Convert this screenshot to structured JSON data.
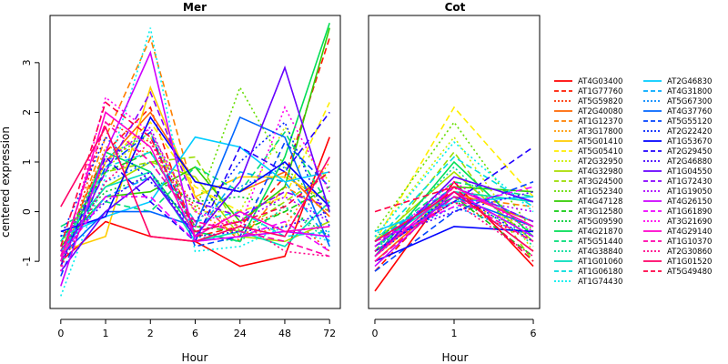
{
  "chart_data": {
    "type": "line",
    "ylabel": "centered expression",
    "legend_placement": "right",
    "ylim": [
      -1.95,
      3.95
    ],
    "panels": [
      {
        "title": "Mer",
        "xlabel": "Hour",
        "x": [
          "0",
          "1",
          "2",
          "6",
          "24",
          "48",
          "72"
        ],
        "ylim": [
          -1.95,
          3.95
        ],
        "yticks": [
          -1,
          0,
          1,
          2,
          3
        ],
        "series": [
          {
            "name": "AT4G03400",
            "values": [
              -1.0,
              -0.2,
              -0.5,
              -0.6,
              -1.1,
              -0.9,
              1.5
            ]
          },
          {
            "name": "AT1G77760",
            "values": [
              -0.8,
              1.2,
              2.1,
              -0.5,
              -0.3,
              0.7,
              3.5
            ]
          },
          {
            "name": "AT5G59820",
            "values": [
              -1.2,
              1.8,
              1.4,
              0.1,
              -0.3,
              0.0,
              -0.8
            ]
          },
          {
            "name": "AT2G40080",
            "values": [
              -0.9,
              1.0,
              2.0,
              0.6,
              0.4,
              0.8,
              -0.1
            ]
          },
          {
            "name": "AT1G12370",
            "values": [
              -1.1,
              1.5,
              3.5,
              0.3,
              -0.6,
              0.5,
              0.0
            ]
          },
          {
            "name": "AT3G17800",
            "values": [
              -1.0,
              1.3,
              1.2,
              0.0,
              -0.5,
              -0.3,
              1.0
            ]
          },
          {
            "name": "AT5G01410",
            "values": [
              -0.8,
              -0.5,
              2.5,
              0.3,
              0.7,
              0.7,
              0.2
            ]
          },
          {
            "name": "AT5G05410",
            "values": [
              -0.9,
              1.0,
              1.8,
              0.5,
              0.0,
              0.3,
              2.2
            ]
          },
          {
            "name": "AT2G32950",
            "values": [
              -0.7,
              0.9,
              1.5,
              0.0,
              0.0,
              1.7,
              0.6
            ]
          },
          {
            "name": "AT4G32980",
            "values": [
              -0.6,
              0.5,
              1.0,
              0.7,
              -0.5,
              -0.6,
              -0.2
            ]
          },
          {
            "name": "AT3G24500",
            "values": [
              -0.9,
              0.8,
              1.0,
              1.1,
              -0.4,
              0.2,
              0.8
            ]
          },
          {
            "name": "AT1G52340",
            "values": [
              -1.0,
              1.0,
              1.6,
              0.0,
              2.5,
              0.9,
              0.0
            ]
          },
          {
            "name": "AT4G47128",
            "values": [
              -0.7,
              0.3,
              0.4,
              0.9,
              -0.2,
              0.5,
              3.7
            ]
          },
          {
            "name": "AT3G12580",
            "values": [
              -0.6,
              0.8,
              1.2,
              -0.3,
              -0.4,
              0.0,
              0.5
            ]
          },
          {
            "name": "AT5G09590",
            "values": [
              -0.5,
              0.4,
              0.7,
              0.2,
              0.3,
              0.1,
              -0.5
            ]
          },
          {
            "name": "AT4G21870",
            "values": [
              -1.1,
              1.2,
              0.8,
              -0.4,
              -0.6,
              1.1,
              3.8
            ]
          },
          {
            "name": "AT5G51440",
            "values": [
              -0.3,
              0.2,
              0.0,
              0.9,
              0.4,
              1.6,
              0.1
            ]
          },
          {
            "name": "AT4G38840",
            "values": [
              -0.8,
              1.1,
              1.6,
              -0.5,
              -0.6,
              0.1,
              -0.6
            ]
          },
          {
            "name": "AT1G01060",
            "values": [
              -0.6,
              0.5,
              0.8,
              -0.6,
              -0.4,
              -0.7,
              0.2
            ]
          },
          {
            "name": "AT1G06180",
            "values": [
              -0.9,
              0.9,
              1.2,
              -0.2,
              0.0,
              -0.5,
              -0.4
            ]
          },
          {
            "name": "AT1G74430",
            "values": [
              -1.7,
              0.7,
              3.7,
              -0.8,
              -0.7,
              -0.3,
              -0.6
            ]
          },
          {
            "name": "AT2G46830",
            "values": [
              -0.5,
              -0.1,
              0.2,
              1.5,
              1.3,
              0.6,
              0.8
            ]
          },
          {
            "name": "AT4G31800",
            "values": [
              -0.8,
              0.3,
              0.7,
              -0.5,
              0.8,
              0.6,
              -0.6
            ]
          },
          {
            "name": "AT5G67300",
            "values": [
              -1.0,
              0.6,
              1.0,
              -0.2,
              0.5,
              0.9,
              -0.5
            ]
          },
          {
            "name": "AT4G37760",
            "values": [
              -0.9,
              0.0,
              0.0,
              -0.3,
              1.9,
              1.5,
              -0.7
            ]
          },
          {
            "name": "AT5G55120",
            "values": [
              -1.3,
              0.9,
              1.6,
              -0.7,
              -0.5,
              1.4,
              0.5
            ]
          },
          {
            "name": "AT2G22420",
            "values": [
              -0.5,
              1.5,
              0.6,
              -0.2,
              1.0,
              1.8,
              -0.3
            ]
          },
          {
            "name": "AT1G53670",
            "values": [
              -0.4,
              -0.1,
              1.9,
              0.6,
              0.4,
              1.0,
              0.1
            ]
          },
          {
            "name": "AT2G29450",
            "values": [
              -1.1,
              1.1,
              0.2,
              -0.6,
              1.3,
              0.8,
              2.0
            ]
          },
          {
            "name": "AT2G46880",
            "values": [
              -0.7,
              0.2,
              0.8,
              -0.5,
              -0.4,
              -0.3,
              0.0
            ]
          },
          {
            "name": "AT1G04550",
            "values": [
              -1.2,
              0.0,
              0.7,
              -0.5,
              0.6,
              2.9,
              0.0
            ]
          },
          {
            "name": "AT1G72430",
            "values": [
              -1.0,
              0.8,
              2.4,
              0.2,
              -0.1,
              0.4,
              0.1
            ]
          },
          {
            "name": "AT1G19050",
            "values": [
              -0.8,
              1.0,
              1.7,
              -0.4,
              -0.2,
              0.3,
              -0.2
            ]
          },
          {
            "name": "AT4G26150",
            "values": [
              -1.5,
              1.2,
              3.2,
              -0.6,
              -0.5,
              -0.4,
              -0.5
            ]
          },
          {
            "name": "AT1G61890",
            "values": [
              -0.9,
              0.3,
              0.3,
              -0.6,
              -0.5,
              -0.2,
              -0.8
            ]
          },
          {
            "name": "AT3G21690",
            "values": [
              -1.2,
              2.3,
              1.6,
              0.0,
              -0.3,
              2.1,
              0.4
            ]
          },
          {
            "name": "AT4G29140",
            "values": [
              -1.0,
              2.0,
              1.3,
              -0.5,
              0.0,
              -0.4,
              -0.3
            ]
          },
          {
            "name": "AT1G10370",
            "values": [
              -0.9,
              1.8,
              1.0,
              -0.2,
              -0.4,
              -0.6,
              -0.9
            ]
          },
          {
            "name": "AT2G30860",
            "values": [
              -1.1,
              0.6,
              1.4,
              -0.3,
              -0.2,
              -0.8,
              -0.9
            ]
          },
          {
            "name": "AT1G01520",
            "values": [
              0.1,
              1.7,
              -0.5,
              -0.6,
              -0.3,
              -0.5,
              1.1
            ]
          },
          {
            "name": "AT5G49480",
            "values": [
              -0.7,
              2.2,
              1.5,
              -0.4,
              -0.2,
              0.1,
              0.8
            ]
          }
        ]
      },
      {
        "title": "Cot",
        "xlabel": "Hour",
        "x": [
          "0",
          "1",
          "6"
        ],
        "ylim": [
          -1.95,
          3.95
        ],
        "yticks": [],
        "series": [
          {
            "name": "AT4G03400",
            "values": [
              -1.6,
              0.6,
              -1.1
            ]
          },
          {
            "name": "AT1G77760",
            "values": [
              -1.2,
              0.5,
              -0.3
            ]
          },
          {
            "name": "AT5G59820",
            "values": [
              -0.8,
              0.2,
              -0.6
            ]
          },
          {
            "name": "AT2G40080",
            "values": [
              -1.0,
              0.4,
              -0.2
            ]
          },
          {
            "name": "AT1G12370",
            "values": [
              -0.6,
              0.3,
              0.1
            ]
          },
          {
            "name": "AT3G17800",
            "values": [
              -0.7,
              0.2,
              -0.3
            ]
          },
          {
            "name": "AT5G01410",
            "values": [
              -0.9,
              0.4,
              0.2
            ]
          },
          {
            "name": "AT5G05410",
            "values": [
              -0.6,
              2.1,
              0.3
            ]
          },
          {
            "name": "AT2G32950",
            "values": [
              -0.5,
              1.5,
              -0.8
            ]
          },
          {
            "name": "AT4G32980",
            "values": [
              -0.6,
              0.8,
              -0.6
            ]
          },
          {
            "name": "AT3G24500",
            "values": [
              -0.8,
              1.2,
              -1.0
            ]
          },
          {
            "name": "AT1G52340",
            "values": [
              -0.4,
              1.8,
              -0.4
            ]
          },
          {
            "name": "AT4G47128",
            "values": [
              -0.7,
              0.5,
              0.4
            ]
          },
          {
            "name": "AT3G12580",
            "values": [
              -0.6,
              0.3,
              -0.9
            ]
          },
          {
            "name": "AT5G09590",
            "values": [
              -0.5,
              0.2,
              -0.4
            ]
          },
          {
            "name": "AT4G21870",
            "values": [
              -0.9,
              1.0,
              -0.5
            ]
          },
          {
            "name": "AT5G51440",
            "values": [
              -0.6,
              0.6,
              0.3
            ]
          },
          {
            "name": "AT4G38840",
            "values": [
              -0.8,
              0.9,
              -0.7
            ]
          },
          {
            "name": "AT1G01060",
            "values": [
              -0.7,
              0.4,
              0.2
            ]
          },
          {
            "name": "AT1G06180",
            "values": [
              -0.6,
              1.1,
              0.1
            ]
          },
          {
            "name": "AT1G74430",
            "values": [
              -0.5,
              1.4,
              0.0
            ]
          },
          {
            "name": "AT2G46830",
            "values": [
              -0.4,
              0.2,
              0.3
            ]
          },
          {
            "name": "AT4G31800",
            "values": [
              -0.6,
              0.5,
              -0.2
            ]
          },
          {
            "name": "AT5G67300",
            "values": [
              -0.7,
              0.1,
              -0.5
            ]
          },
          {
            "name": "AT4G37760",
            "values": [
              -0.8,
              0.3,
              -0.3
            ]
          },
          {
            "name": "AT5G55120",
            "values": [
              -1.2,
              0.0,
              0.6
            ]
          },
          {
            "name": "AT2G22420",
            "values": [
              -0.9,
              0.4,
              -0.6
            ]
          },
          {
            "name": "AT1G53670",
            "values": [
              -1.0,
              -0.3,
              -0.4
            ]
          },
          {
            "name": "AT2G29450",
            "values": [
              -0.8,
              0.2,
              1.3
            ]
          },
          {
            "name": "AT2G46880",
            "values": [
              -0.6,
              0.0,
              0.4
            ]
          },
          {
            "name": "AT1G04550",
            "values": [
              -0.9,
              0.7,
              0.2
            ]
          },
          {
            "name": "AT1G72430",
            "values": [
              -0.7,
              0.5,
              -0.2
            ]
          },
          {
            "name": "AT1G19050",
            "values": [
              -0.8,
              0.3,
              0.0
            ]
          },
          {
            "name": "AT4G26150",
            "values": [
              -1.1,
              0.4,
              -0.5
            ]
          },
          {
            "name": "AT1G61890",
            "values": [
              -0.6,
              0.1,
              0.5
            ]
          },
          {
            "name": "AT3G21690",
            "values": [
              -0.7,
              0.6,
              -0.4
            ]
          },
          {
            "name": "AT4G29140",
            "values": [
              -0.9,
              0.5,
              -0.3
            ]
          },
          {
            "name": "AT1G10370",
            "values": [
              -1.0,
              0.3,
              -0.6
            ]
          },
          {
            "name": "AT2G30860",
            "values": [
              -0.8,
              0.2,
              -0.9
            ]
          },
          {
            "name": "AT1G01520",
            "values": [
              -0.6,
              0.4,
              -0.8
            ]
          },
          {
            "name": "AT5G49480",
            "values": [
              0.0,
              0.5,
              -1.0
            ]
          }
        ]
      }
    ],
    "series_styles": [
      {
        "color": "#ff0000",
        "dash": "solid"
      },
      {
        "color": "#ff1a00",
        "dash": "dashed"
      },
      {
        "color": "#ff3300",
        "dash": "dotted"
      },
      {
        "color": "#ff6600",
        "dash": "solid"
      },
      {
        "color": "#ff8000",
        "dash": "dashed"
      },
      {
        "color": "#ff9900",
        "dash": "dotted"
      },
      {
        "color": "#ffcc00",
        "dash": "solid"
      },
      {
        "color": "#ffee00",
        "dash": "dashed"
      },
      {
        "color": "#ccee00",
        "dash": "dotted"
      },
      {
        "color": "#aadd00",
        "dash": "solid"
      },
      {
        "color": "#99dd00",
        "dash": "dashed"
      },
      {
        "color": "#66dd00",
        "dash": "dotted"
      },
      {
        "color": "#33cc00",
        "dash": "solid"
      },
      {
        "color": "#11cc11",
        "dash": "dashed"
      },
      {
        "color": "#00cc33",
        "dash": "dotted"
      },
      {
        "color": "#00dd55",
        "dash": "solid"
      },
      {
        "color": "#00dd77",
        "dash": "dashed"
      },
      {
        "color": "#00dd99",
        "dash": "dotted"
      },
      {
        "color": "#00ddbb",
        "dash": "solid"
      },
      {
        "color": "#00dddd",
        "dash": "dashed"
      },
      {
        "color": "#00eeee",
        "dash": "dotted"
      },
      {
        "color": "#00ccff",
        "dash": "solid"
      },
      {
        "color": "#00aaff",
        "dash": "dashed"
      },
      {
        "color": "#0088ff",
        "dash": "dotted"
      },
      {
        "color": "#0066ff",
        "dash": "solid"
      },
      {
        "color": "#0044ff",
        "dash": "dashed"
      },
      {
        "color": "#0022ff",
        "dash": "dotted"
      },
      {
        "color": "#0000ff",
        "dash": "solid"
      },
      {
        "color": "#2200ff",
        "dash": "dashed"
      },
      {
        "color": "#4400ff",
        "dash": "dotted"
      },
      {
        "color": "#6600ff",
        "dash": "solid"
      },
      {
        "color": "#8800ff",
        "dash": "dashed"
      },
      {
        "color": "#aa00ff",
        "dash": "dotted"
      },
      {
        "color": "#cc00ff",
        "dash": "solid"
      },
      {
        "color": "#ee00ff",
        "dash": "dashed"
      },
      {
        "color": "#ff00ee",
        "dash": "dotted"
      },
      {
        "color": "#ff00cc",
        "dash": "solid"
      },
      {
        "color": "#ff00aa",
        "dash": "dashed"
      },
      {
        "color": "#ff0088",
        "dash": "dotted"
      },
      {
        "color": "#ff0066",
        "dash": "solid"
      },
      {
        "color": "#ff0044",
        "dash": "dashed"
      }
    ]
  }
}
